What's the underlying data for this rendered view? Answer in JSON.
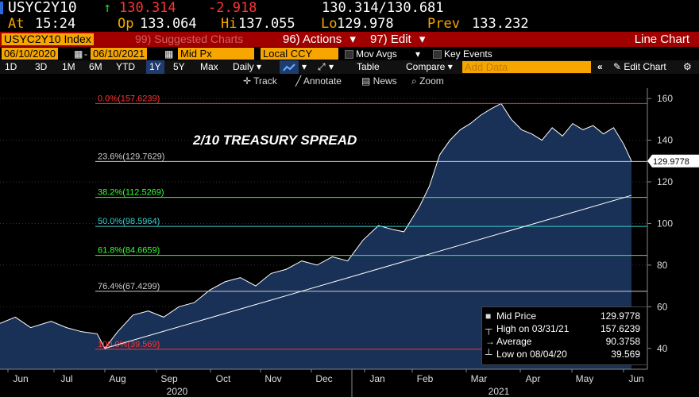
{
  "header": {
    "ticker": "USYC2Y10",
    "arrow": "↑",
    "last": "130.314",
    "change": "-2.918",
    "bid_ask": "130.314/130.681",
    "at_label": "At",
    "time": "15:24",
    "op_label": "Op",
    "open": "133.064",
    "hi_label": "Hi",
    "high": "137.055",
    "lo_label": "Lo",
    "low": "129.978",
    "prev_label": "Prev",
    "prev": "133.232"
  },
  "menubar": {
    "security": "USYC2Y10 Index",
    "suggested": "99) Suggested Charts",
    "actions": "96) Actions",
    "actions_arrow": "▾",
    "edit": "97) Edit",
    "edit_arrow": "▾",
    "title": "Line Chart"
  },
  "controls": {
    "date_from": "06/10/2020",
    "date_to": "06/10/2021",
    "field": "Mid Px",
    "currency": "Local CCY",
    "mov_avgs": "Mov Avgs",
    "key_events": "Key Events"
  },
  "tabs": [
    "1D",
    "3D",
    "1M",
    "6M",
    "YTD",
    "1Y",
    "5Y",
    "Max"
  ],
  "active_tab": "1Y",
  "toolbar": {
    "frequency": "Daily",
    "table": "Table",
    "compare": "Compare",
    "add_data_placeholder": "Add Data",
    "edit_chart": "Edit Chart",
    "track": "Track",
    "annotate": "Annotate",
    "news": "News",
    "zoom": "Zoom"
  },
  "colors": {
    "up": "#1fd11f",
    "down": "#ff3333",
    "orange": "#f7a600",
    "menu_red": "#a00000",
    "area_fill": "#1a3157",
    "line": "#ffffff"
  },
  "chart_data": {
    "type": "area",
    "title": "2/10 TREASURY SPREAD",
    "ylim": [
      30,
      165
    ],
    "y_ticks": [
      40,
      60,
      80,
      100,
      120,
      140,
      160
    ],
    "x_ticks": [
      "Jun",
      "Jul",
      "Aug",
      "Sep",
      "Oct",
      "Nov",
      "Dec",
      "Jan",
      "Feb",
      "Mar",
      "Apr",
      "May",
      "Jun"
    ],
    "year_labels": [
      "2020",
      "2021"
    ],
    "last_value_label": "129.9778",
    "fib_levels": [
      {
        "label": "0.0%(157.6239)",
        "value": 157.6239,
        "color": "#ff3333"
      },
      {
        "label": "23.6%(129.7629)",
        "value": 129.7629,
        "color": "#cccccc"
      },
      {
        "label": "38.2%(112.5269)",
        "value": 112.5269,
        "color": "#33ff33"
      },
      {
        "label": "50.0%(98.5964)",
        "value": 98.5964,
        "color": "#33cccc"
      },
      {
        "label": "61.8%(84.6659)",
        "value": 84.6659,
        "color": "#33ff33"
      },
      {
        "label": "76.4%(67.4299)",
        "value": 67.4299,
        "color": "#cccccc"
      },
      {
        "label": "100.0%(39.569)",
        "value": 39.569,
        "color": "#ff3333"
      }
    ],
    "trendline": {
      "from": [
        2.05,
        40.0
      ],
      "to": [
        12.35,
        113.5
      ]
    },
    "series": [
      {
        "name": "Mid Price",
        "x": [
          0.0,
          0.3,
          0.6,
          1.0,
          1.3,
          1.6,
          1.9,
          2.05,
          2.3,
          2.6,
          2.9,
          3.2,
          3.5,
          3.8,
          4.1,
          4.4,
          4.7,
          5.0,
          5.3,
          5.6,
          5.9,
          6.2,
          6.5,
          6.8,
          7.1,
          7.4,
          7.7,
          7.9,
          8.2,
          8.4,
          8.6,
          8.8,
          9.0,
          9.2,
          9.4,
          9.6,
          9.8,
          10.0,
          10.2,
          10.4,
          10.6,
          10.8,
          11.0,
          11.2,
          11.4,
          11.6,
          11.8,
          12.0,
          12.2,
          12.35
        ],
        "values": [
          52,
          55,
          50,
          53,
          50,
          48,
          47,
          40,
          48,
          56,
          58,
          55,
          60,
          62,
          68,
          72,
          74,
          70,
          76,
          78,
          82,
          80,
          84,
          82,
          92,
          99,
          97,
          96,
          108,
          118,
          133,
          140,
          145,
          148,
          152,
          155,
          157.6,
          150,
          145,
          143,
          140,
          146,
          142,
          148,
          145,
          147,
          143,
          146,
          138,
          130
        ]
      }
    ],
    "legend": {
      "placement": "bottom-right",
      "rows": [
        {
          "label": "Mid Price",
          "value": "129.9778"
        },
        {
          "label": "High on 03/31/21",
          "value": "157.6239"
        },
        {
          "label": "Average",
          "value": "90.3758"
        },
        {
          "label": "Low on 08/04/20",
          "value": "39.569"
        }
      ]
    }
  }
}
